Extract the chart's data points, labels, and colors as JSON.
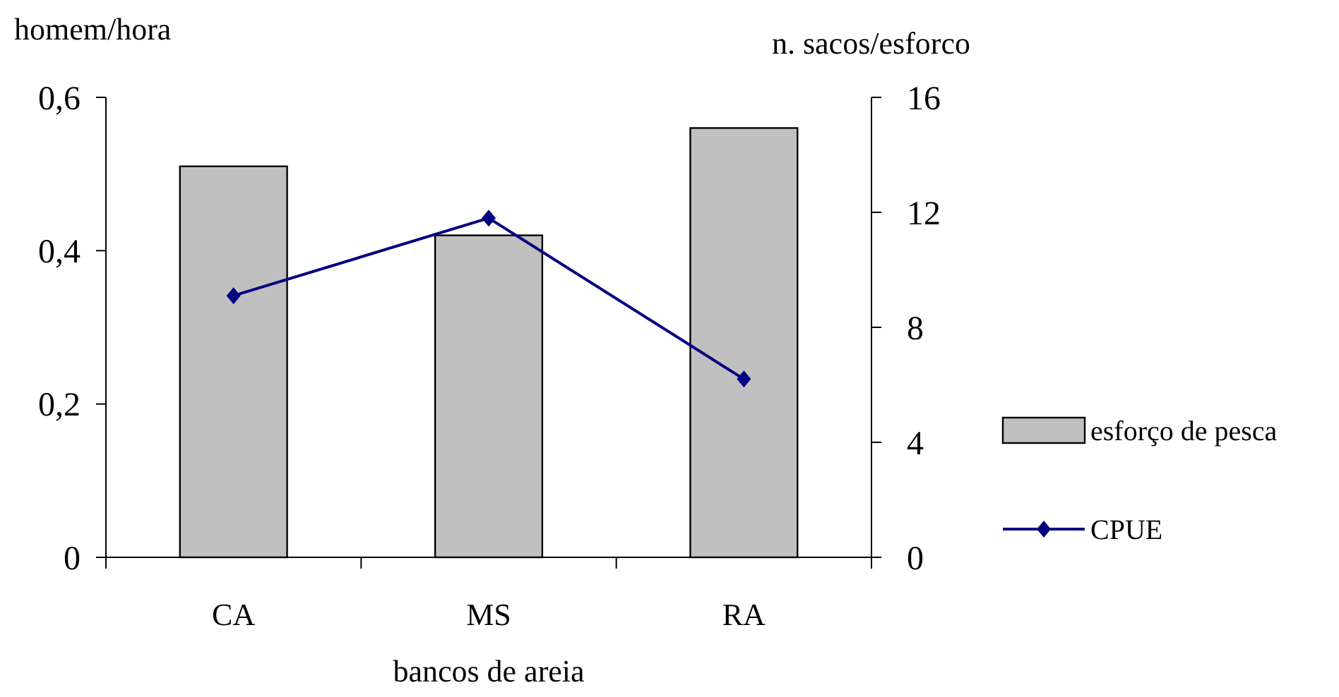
{
  "chart_data": {
    "type": "bar",
    "categories": [
      "CA",
      "MS",
      "RA"
    ],
    "xlabel": "bancos de areia",
    "ylabel": "homem/hora",
    "y2label": "n. sacos/esforco",
    "ylim": [
      0,
      0.6
    ],
    "yticks": [
      {
        "value": 0,
        "label": "0"
      },
      {
        "value": 0.2,
        "label": "0,2"
      },
      {
        "value": 0.4,
        "label": "0,4"
      },
      {
        "value": 0.6,
        "label": "0,6"
      }
    ],
    "y2lim": [
      0,
      16
    ],
    "y2ticks": [
      0,
      4,
      8,
      12,
      16
    ],
    "legend": "right",
    "marker": "diamond",
    "series": [
      {
        "name": "esforço de pesca",
        "color": "#c0c0c0",
        "values": [
          0.51,
          0.42,
          0.56
        ]
      },
      {
        "name": "CPUE",
        "type": "line",
        "axis": "y2",
        "color": "#000080",
        "values": [
          9.1,
          11.8,
          6.2
        ]
      }
    ]
  }
}
